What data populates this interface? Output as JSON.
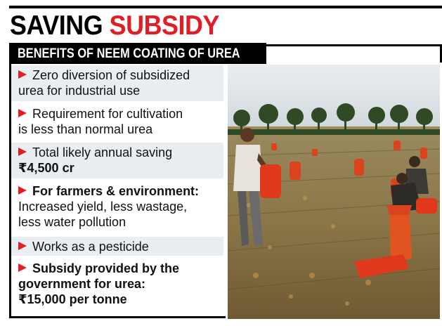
{
  "headline": {
    "word1": "SAVING",
    "word2": "SUBSIDY"
  },
  "subheading": "BENEFITS OF NEEM COATING OF UREA",
  "items": [
    {
      "line1": "Zero diversion of subsidized",
      "line2": "urea for industrial use"
    },
    {
      "line1": "Requirement for cultivation",
      "line2": "is less than normal urea"
    },
    {
      "line1": "Total likely annual saving",
      "line2": "₹4,500 cr"
    },
    {
      "line1": "For farmers & environment:",
      "line2": "Increased yield, less wastage,",
      "line3": "less water pollution"
    },
    {
      "line1": "Works as a pesticide"
    },
    {
      "line1": "Subsidy provided by the",
      "line2": "government for urea:",
      "line3": "₹15,000 per tonne"
    }
  ],
  "colors": {
    "accent": "#e01e25",
    "panel_shade": "#e8eef2",
    "text": "#111111"
  },
  "photo": {
    "subject": "farm-workers-field-photo"
  }
}
